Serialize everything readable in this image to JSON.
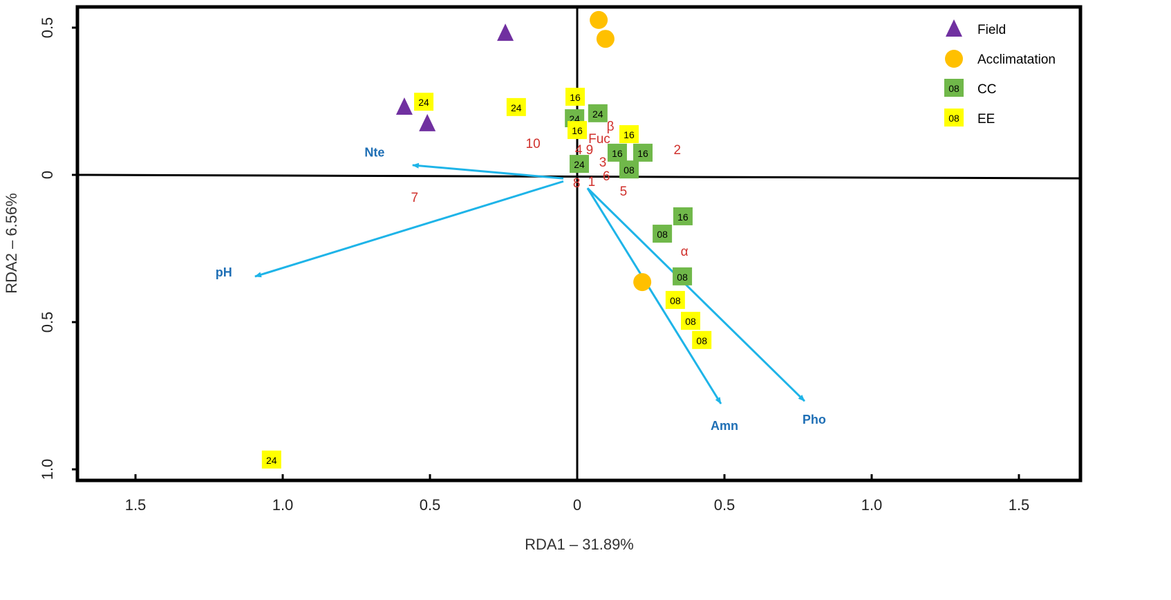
{
  "chart_data": {
    "type": "scatter",
    "title": "",
    "xlabel": "RDA1 – 31.89%",
    "ylabel": "RDA2 – 6.56%",
    "xlim": [
      -1.7,
      1.7
    ],
    "ylim": [
      -1.04,
      0.57
    ],
    "grid": false,
    "legend_position": "top-right",
    "x_ticks": [
      {
        "value": -1.5,
        "label": "1.5"
      },
      {
        "value": -1.0,
        "label": "1.0"
      },
      {
        "value": -0.5,
        "label": "0.5"
      },
      {
        "value": 0,
        "label": "0"
      },
      {
        "value": 0.5,
        "label": "0.5"
      },
      {
        "value": 1.0,
        "label": "1.0"
      },
      {
        "value": 1.5,
        "label": "1.5"
      }
    ],
    "y_ticks": [
      {
        "value": 0.5,
        "label": "0.5"
      },
      {
        "value": 0,
        "label": "0"
      },
      {
        "value": -0.5,
        "label": "0.5"
      },
      {
        "value": -1.0,
        "label": "1.0"
      }
    ],
    "legend": [
      {
        "name": "Field",
        "marker": "triangle",
        "color": "#7030A0"
      },
      {
        "name": "Acclimatation",
        "marker": "circle",
        "color": "#FFC000"
      },
      {
        "name": "CC",
        "marker": "square",
        "color": "#70B84A",
        "sample": "08"
      },
      {
        "name": "EE",
        "marker": "square",
        "color": "#FFFF00",
        "sample": "08"
      }
    ],
    "series": [
      {
        "name": "Field",
        "points": [
          {
            "x": -0.244,
            "y": 0.481
          },
          {
            "x": -0.587,
            "y": 0.23
          },
          {
            "x": -0.509,
            "y": 0.174
          }
        ]
      },
      {
        "name": "Acclimatation",
        "points": [
          {
            "x": 0.073,
            "y": 0.526
          },
          {
            "x": 0.096,
            "y": 0.462
          },
          {
            "x": 0.221,
            "y": -0.364
          }
        ]
      },
      {
        "name": "CC",
        "points": [
          {
            "x": -0.009,
            "y": 0.19,
            "label": "24"
          },
          {
            "x": 0.07,
            "y": 0.207,
            "label": "24"
          },
          {
            "x": 0.007,
            "y": 0.035,
            "label": "24"
          },
          {
            "x": 0.136,
            "y": 0.073,
            "label": "16"
          },
          {
            "x": 0.223,
            "y": 0.073,
            "label": "16"
          },
          {
            "x": 0.176,
            "y": 0.016,
            "label": "08"
          },
          {
            "x": 0.359,
            "y": -0.143,
            "label": "16"
          },
          {
            "x": 0.289,
            "y": -0.202,
            "label": "08"
          },
          {
            "x": 0.357,
            "y": -0.347,
            "label": "08"
          }
        ]
      },
      {
        "name": "EE",
        "points": [
          {
            "x": -0.521,
            "y": 0.246,
            "label": "24"
          },
          {
            "x": -0.207,
            "y": 0.228,
            "label": "24"
          },
          {
            "x": -0.007,
            "y": 0.263,
            "label": "16"
          },
          {
            "x": 0.0,
            "y": 0.15,
            "label": "16"
          },
          {
            "x": 0.176,
            "y": 0.136,
            "label": "16"
          },
          {
            "x": 0.333,
            "y": -0.427,
            "label": "08"
          },
          {
            "x": 0.385,
            "y": -0.498,
            "label": "08"
          },
          {
            "x": 0.423,
            "y": -0.563,
            "label": "08"
          },
          {
            "x": -1.038,
            "y": -0.969,
            "label": "24"
          }
        ]
      }
    ],
    "species_labels": [
      {
        "text": "β",
        "x": 0.113,
        "y": 0.167
      },
      {
        "text": "Fuc",
        "x": 0.075,
        "y": 0.125
      },
      {
        "text": "10",
        "x": -0.15,
        "y": 0.108
      },
      {
        "text": "4",
        "x": 0.005,
        "y": 0.087
      },
      {
        "text": "9",
        "x": 0.042,
        "y": 0.087
      },
      {
        "text": "2",
        "x": 0.34,
        "y": 0.087
      },
      {
        "text": "3",
        "x": 0.087,
        "y": 0.045
      },
      {
        "text": "6",
        "x": 0.099,
        "y": -0.002
      },
      {
        "text": "8",
        "x": -0.002,
        "y": -0.026
      },
      {
        "text": "1",
        "x": 0.049,
        "y": -0.021
      },
      {
        "text": "5",
        "x": 0.157,
        "y": -0.054
      },
      {
        "text": "7",
        "x": -0.552,
        "y": -0.075
      },
      {
        "text": "α",
        "x": 0.364,
        "y": -0.258
      }
    ],
    "vectors": [
      {
        "name": "Nte",
        "from": [
          -0.047,
          -0.012
        ],
        "to": [
          -0.559,
          0.033
        ],
        "label_at": [
          -0.688,
          0.062
        ]
      },
      {
        "name": "pH",
        "from": [
          -0.047,
          -0.022
        ],
        "to": [
          -1.094,
          -0.345
        ],
        "label_at": [
          -1.2,
          -0.345
        ]
      },
      {
        "name": "Amn",
        "from": [
          0.035,
          -0.045
        ],
        "to": [
          0.488,
          -0.777
        ],
        "label_at": [
          0.5,
          -0.866
        ]
      },
      {
        "name": "Pho",
        "from": [
          0.035,
          -0.045
        ],
        "to": [
          0.772,
          -0.768
        ],
        "label_at": [
          0.805,
          -0.845
        ]
      }
    ],
    "colors": {
      "vector": "#1EB4E8",
      "vector_label": "#1F6FB5",
      "species": "#D0312D"
    }
  }
}
